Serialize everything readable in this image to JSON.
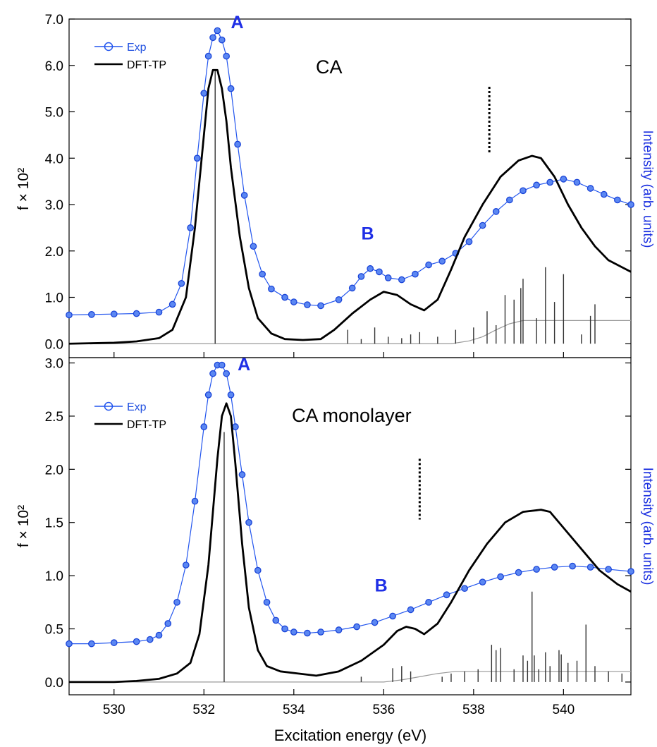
{
  "figure": {
    "x_axis_label": "Excitation energy (eV)",
    "x_ticks": [
      "530",
      "532",
      "534",
      "536",
      "538",
      "540"
    ]
  },
  "chart_data": [
    {
      "type": "line",
      "title": "CA",
      "xlabel": "Excitation energy (eV)",
      "ylabel": "f × 10²",
      "y2label": "Intensity (arb. units)",
      "xlim": [
        529,
        541.5
      ],
      "ylim": [
        -0.3,
        7.0
      ],
      "y_ticks": [
        "0.0",
        "1.0",
        "2.0",
        "3.0",
        "4.0",
        "5.0",
        "6.0",
        "7.0"
      ],
      "legend": {
        "position": "top-left",
        "entries": [
          "Exp",
          "DFT-TP"
        ]
      },
      "peak_labels": [
        {
          "text": "A",
          "x": 532.6,
          "y": 6.8
        },
        {
          "text": "B",
          "x": 535.5,
          "y": 2.25
        }
      ],
      "ionization_marker_x": 538.35,
      "series": [
        {
          "name": "Exp",
          "color": "#2255ee",
          "marker": "circle",
          "x": [
            529.0,
            529.5,
            530.0,
            530.5,
            531.0,
            531.3,
            531.5,
            531.7,
            531.85,
            532.0,
            532.1,
            532.2,
            532.3,
            532.4,
            532.5,
            532.6,
            532.75,
            532.9,
            533.1,
            533.3,
            533.5,
            533.8,
            534.0,
            534.3,
            534.6,
            535.0,
            535.3,
            535.5,
            535.7,
            535.9,
            536.1,
            536.4,
            536.7,
            537.0,
            537.3,
            537.6,
            537.9,
            538.2,
            538.5,
            538.8,
            539.1,
            539.4,
            539.7,
            540.0,
            540.3,
            540.6,
            540.9,
            541.2,
            541.5
          ],
          "y": [
            0.62,
            0.63,
            0.64,
            0.65,
            0.68,
            0.85,
            1.3,
            2.5,
            4.0,
            5.4,
            6.2,
            6.6,
            6.75,
            6.55,
            6.2,
            5.5,
            4.3,
            3.2,
            2.1,
            1.5,
            1.18,
            1.0,
            0.9,
            0.84,
            0.82,
            0.95,
            1.2,
            1.45,
            1.62,
            1.55,
            1.42,
            1.38,
            1.5,
            1.7,
            1.78,
            1.95,
            2.2,
            2.55,
            2.85,
            3.1,
            3.3,
            3.42,
            3.48,
            3.55,
            3.48,
            3.35,
            3.22,
            3.1,
            3.0
          ]
        },
        {
          "name": "DFT-TP",
          "color": "#000000",
          "x": [
            529.0,
            530.0,
            530.5,
            531.0,
            531.3,
            531.6,
            531.8,
            532.0,
            532.1,
            532.2,
            532.3,
            532.4,
            532.5,
            532.6,
            532.8,
            533.0,
            533.2,
            533.5,
            533.8,
            534.2,
            534.6,
            534.9,
            535.3,
            535.7,
            536.0,
            536.3,
            536.6,
            536.9,
            537.2,
            537.5,
            537.8,
            538.2,
            538.6,
            539.0,
            539.3,
            539.5,
            539.8,
            540.1,
            540.4,
            540.7,
            541.0,
            541.5
          ],
          "y": [
            0.0,
            0.02,
            0.05,
            0.12,
            0.3,
            1.0,
            2.5,
            4.5,
            5.5,
            5.9,
            5.9,
            5.5,
            4.8,
            3.8,
            2.3,
            1.2,
            0.55,
            0.22,
            0.1,
            0.08,
            0.1,
            0.3,
            0.65,
            0.95,
            1.12,
            1.05,
            0.85,
            0.72,
            0.95,
            1.6,
            2.3,
            3.0,
            3.6,
            3.95,
            4.05,
            4.0,
            3.6,
            3.0,
            2.5,
            2.1,
            1.8,
            1.55
          ]
        }
      ],
      "sticks": {
        "x": [
          532.25,
          535.2,
          535.5,
          535.8,
          536.1,
          536.4,
          536.6,
          536.8,
          537.2,
          537.6,
          538.0,
          538.3,
          538.5,
          538.7,
          538.9,
          539.05,
          539.1,
          539.4,
          539.6,
          539.8,
          540.0,
          540.4,
          540.6,
          540.7
        ],
        "y": [
          5.9,
          0.3,
          0.1,
          0.35,
          0.15,
          0.12,
          0.2,
          0.25,
          0.15,
          0.3,
          0.35,
          0.7,
          0.4,
          1.05,
          0.95,
          1.2,
          1.4,
          0.55,
          1.65,
          0.9,
          1.5,
          0.2,
          0.6,
          0.85
        ]
      },
      "step_edge": {
        "x": [
          529.0,
          537.5,
          537.9,
          538.2,
          538.5,
          538.8,
          539.1,
          541.5
        ],
        "y": [
          0.0,
          0.0,
          0.06,
          0.15,
          0.3,
          0.43,
          0.5,
          0.5
        ]
      }
    },
    {
      "type": "line",
      "title": "CA monolayer",
      "xlabel": "Excitation energy (eV)",
      "ylabel": "f × 10²",
      "y2label": "Intensity (arb. units)",
      "xlim": [
        529,
        541.5
      ],
      "ylim": [
        -0.12,
        3.05
      ],
      "y_ticks": [
        "0.0",
        "0.5",
        "1.0",
        "1.5",
        "2.0",
        "2.5",
        "3.0"
      ],
      "legend": {
        "position": "top-left",
        "entries": [
          "Exp",
          "DFT-TP"
        ]
      },
      "peak_labels": [
        {
          "text": "A",
          "x": 532.75,
          "y": 2.93
        },
        {
          "text": "B",
          "x": 535.8,
          "y": 0.85
        }
      ],
      "ionization_marker_x": 536.8,
      "series": [
        {
          "name": "Exp",
          "color": "#2255ee",
          "marker": "circle",
          "x": [
            529.0,
            529.5,
            530.0,
            530.5,
            530.8,
            531.0,
            531.2,
            531.4,
            531.6,
            531.8,
            532.0,
            532.1,
            532.2,
            532.3,
            532.4,
            532.5,
            532.6,
            532.7,
            532.85,
            533.0,
            533.2,
            533.4,
            533.6,
            533.8,
            534.0,
            534.3,
            534.6,
            535.0,
            535.4,
            535.8,
            536.2,
            536.6,
            537.0,
            537.4,
            537.8,
            538.2,
            538.6,
            539.0,
            539.4,
            539.8,
            540.2,
            540.6,
            541.0,
            541.5
          ],
          "y": [
            0.36,
            0.36,
            0.37,
            0.38,
            0.4,
            0.44,
            0.55,
            0.75,
            1.1,
            1.7,
            2.4,
            2.7,
            2.9,
            2.98,
            2.98,
            2.9,
            2.7,
            2.4,
            1.95,
            1.5,
            1.05,
            0.75,
            0.58,
            0.5,
            0.47,
            0.46,
            0.47,
            0.49,
            0.52,
            0.56,
            0.62,
            0.68,
            0.75,
            0.82,
            0.88,
            0.94,
            0.99,
            1.03,
            1.06,
            1.08,
            1.09,
            1.08,
            1.06,
            1.04
          ]
        },
        {
          "name": "DFT-TP",
          "color": "#000000",
          "x": [
            529.0,
            530.0,
            530.5,
            531.0,
            531.4,
            531.7,
            531.9,
            532.1,
            532.2,
            532.3,
            532.4,
            532.5,
            532.6,
            532.7,
            532.85,
            533.0,
            533.2,
            533.4,
            533.7,
            534.1,
            534.5,
            535.0,
            535.5,
            536.0,
            536.3,
            536.5,
            536.7,
            536.9,
            537.2,
            537.5,
            537.9,
            538.3,
            538.7,
            539.1,
            539.5,
            539.7,
            540.0,
            540.4,
            540.8,
            541.2,
            541.5
          ],
          "y": [
            0.0,
            0.0,
            0.01,
            0.03,
            0.08,
            0.18,
            0.45,
            1.1,
            1.6,
            2.1,
            2.5,
            2.62,
            2.5,
            2.05,
            1.3,
            0.7,
            0.3,
            0.15,
            0.1,
            0.08,
            0.06,
            0.1,
            0.2,
            0.35,
            0.48,
            0.52,
            0.5,
            0.45,
            0.55,
            0.75,
            1.05,
            1.3,
            1.5,
            1.6,
            1.62,
            1.6,
            1.45,
            1.25,
            1.05,
            0.92,
            0.85
          ]
        }
      ],
      "sticks": {
        "x": [
          532.45,
          535.5,
          536.2,
          536.4,
          536.6,
          537.3,
          537.5,
          537.8,
          538.1,
          538.4,
          538.5,
          538.6,
          538.9,
          539.1,
          539.2,
          539.3,
          539.35,
          539.45,
          539.6,
          539.7,
          539.9,
          539.95,
          540.1,
          540.3,
          540.5,
          540.7,
          541.0,
          541.3
        ],
        "y": [
          2.35,
          0.05,
          0.13,
          0.15,
          0.1,
          0.05,
          0.08,
          0.1,
          0.12,
          0.35,
          0.3,
          0.32,
          0.12,
          0.25,
          0.2,
          0.85,
          0.25,
          0.12,
          0.28,
          0.15,
          0.3,
          0.26,
          0.18,
          0.2,
          0.54,
          0.15,
          0.1,
          0.08
        ]
      },
      "step_edge": {
        "x": [
          529.0,
          536.0,
          536.4,
          536.8,
          537.2,
          537.6,
          538.0,
          541.5
        ],
        "y": [
          0.0,
          0.0,
          0.02,
          0.05,
          0.08,
          0.1,
          0.1,
          0.1
        ]
      }
    }
  ]
}
